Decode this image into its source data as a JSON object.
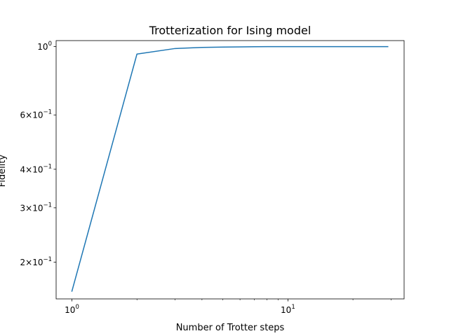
{
  "chart_data": {
    "type": "line",
    "title": "Trotterization for Ising model",
    "xlabel": "Number of Trotter steps",
    "ylabel": "Fidelity",
    "xscale": "log",
    "yscale": "log",
    "xlim": [
      0.845,
      34.5
    ],
    "ylim": [
      0.152,
      1.045
    ],
    "grid": false,
    "x_ticks": [
      {
        "value": 1,
        "base": "10",
        "exp": "0"
      },
      {
        "value": 10,
        "base": "10",
        "exp": "1"
      }
    ],
    "y_ticks": [
      {
        "value": 1.0,
        "mant": "",
        "base": "10",
        "exp": "0"
      },
      {
        "value": 0.6,
        "mant": "6×",
        "base": "10",
        "exp": "−1"
      },
      {
        "value": 0.4,
        "mant": "4×",
        "base": "10",
        "exp": "−1"
      },
      {
        "value": 0.3,
        "mant": "3×",
        "base": "10",
        "exp": "−1"
      },
      {
        "value": 0.2,
        "mant": "2×",
        "base": "10",
        "exp": "−1"
      }
    ],
    "series": [
      {
        "color": "#1f77b4",
        "x": [
          1,
          2,
          3,
          4,
          5,
          6,
          7,
          8,
          9,
          10,
          11,
          12,
          13,
          14,
          15,
          16,
          17,
          18,
          19,
          20,
          21,
          22,
          23,
          24,
          25,
          26,
          27,
          28,
          29
        ],
        "y": [
          0.161,
          0.945,
          0.985,
          0.993,
          0.996,
          0.997,
          0.998,
          0.999,
          0.999,
          0.999,
          0.999,
          0.999,
          0.999,
          0.999,
          0.999,
          0.999,
          0.999,
          0.999,
          0.999,
          0.999,
          0.999,
          0.999,
          0.999,
          0.999,
          0.999,
          0.999,
          0.999,
          0.999,
          0.999
        ]
      }
    ]
  }
}
